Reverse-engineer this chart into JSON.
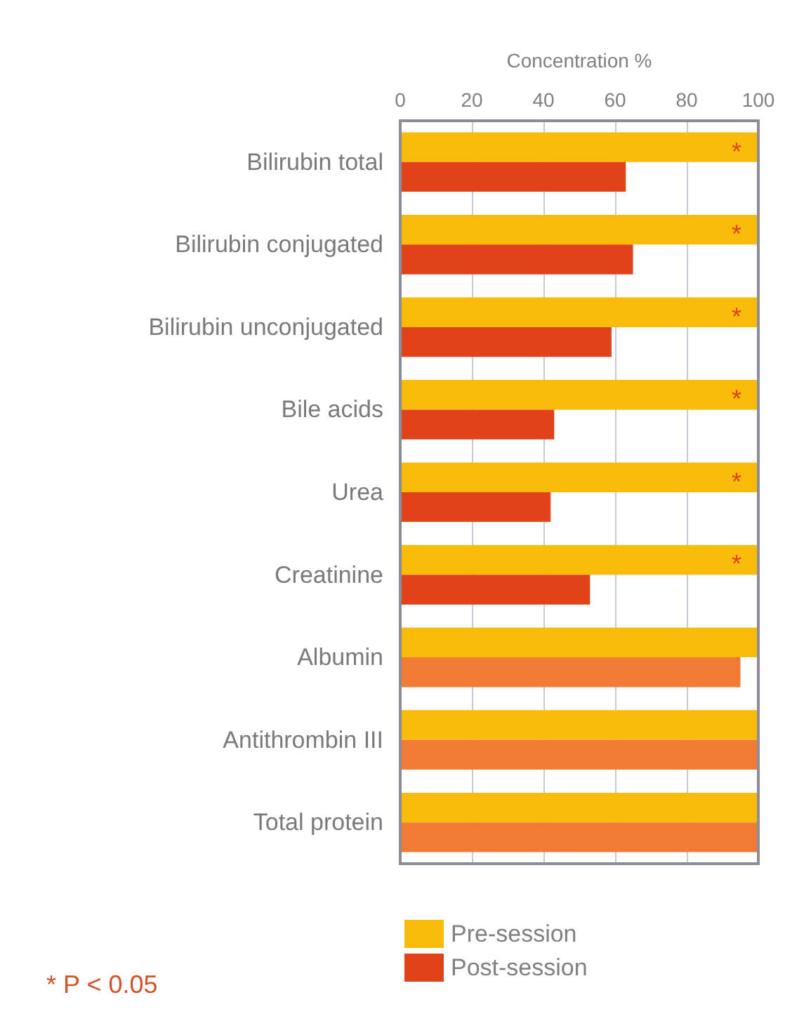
{
  "chart_data": {
    "type": "bar",
    "orientation": "horizontal",
    "xlabel": "Concentration %",
    "categories": [
      "Bilirubin total",
      "Bilirubin conjugated",
      "Bilirubin unconjugated",
      "Bile acids",
      "Urea",
      "Creatinine",
      "Albumin",
      "Antithrombin III",
      "Total protein"
    ],
    "series": [
      {
        "name": "Pre-session",
        "color": "#fbbb0a",
        "values": [
          100,
          100,
          100,
          100,
          100,
          100,
          100,
          100,
          100
        ]
      },
      {
        "name": "Post-session",
        "color": "#e0431a",
        "colors": [
          "#e0431a",
          "#e0431a",
          "#e0431a",
          "#e0431a",
          "#e0431a",
          "#e0431a",
          "#f17a35",
          "#f17a35",
          "#f17a35"
        ],
        "values": [
          63,
          65,
          59,
          43,
          42,
          53,
          95,
          100,
          100
        ]
      }
    ],
    "xlim": [
      0,
      100
    ],
    "xticks": [
      0,
      20,
      40,
      60,
      80,
      100
    ],
    "grid": "x",
    "legend": "bottom left",
    "annotations": [
      {
        "text": "*",
        "y": "Bilirubin total"
      },
      {
        "text": "*",
        "y": "Bilirubin conjugated"
      },
      {
        "text": "*",
        "y": "Bilirubin unconjugated"
      },
      {
        "text": "*",
        "y": "Bile acids"
      },
      {
        "text": "*",
        "y": "Urea"
      },
      {
        "text": "*",
        "y": "Creatinine"
      },
      "* P < 0.05"
    ]
  }
}
